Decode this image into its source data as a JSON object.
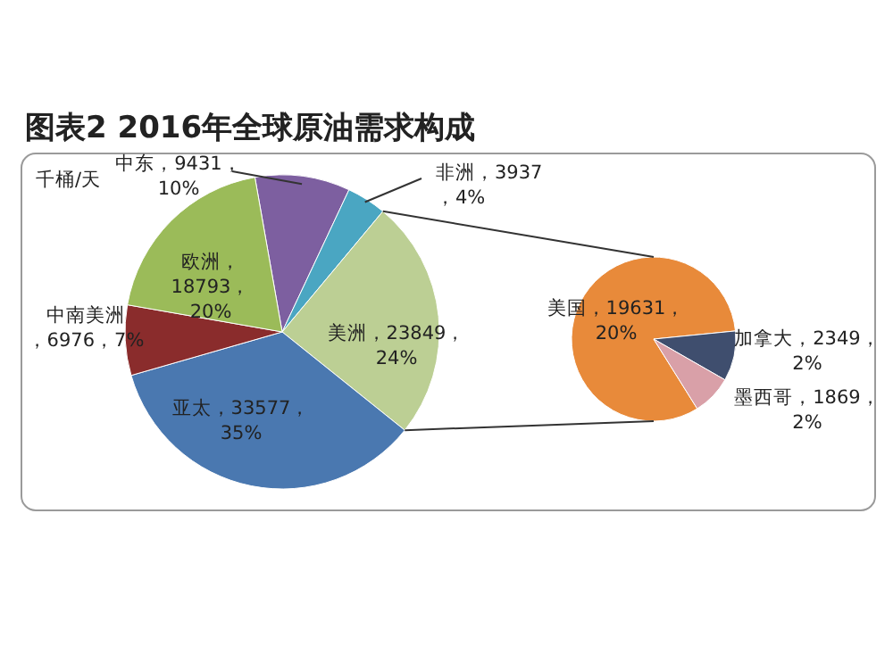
{
  "chart_data": [
    {
      "type": "pie",
      "title": "图表2 2016年全球原油需求构成",
      "annotations": [
        "千桶/天"
      ],
      "categories": [
        "中东",
        "非洲",
        "美洲",
        "亚太",
        "中南美洲",
        "欧洲"
      ],
      "values": [
        9431,
        3937,
        23849,
        33577,
        6976,
        18793
      ],
      "value_labels": [
        "，9431，\n10%",
        "，3937\n，4%",
        "，23849，\n24%",
        "，33577，\n35%",
        "\n，6976，7%",
        "，\n18793，\n20%"
      ],
      "colors": [
        "#7d5fa0",
        "#4aa6c2",
        "#bccf94",
        "#4a78b0",
        "#8a2c2c",
        "#9bbb59"
      ]
    },
    {
      "type": "pie",
      "categories": [
        "美国",
        "加拿大",
        "墨西哥"
      ],
      "values": [
        19631,
        2349,
        1869
      ],
      "value_labels": [
        "，19631，\n20%",
        "，2349，\n2%",
        "，1869，\n2%"
      ],
      "colors": [
        "#e88a3a",
        "#3f4e6e",
        "#d9a0a8"
      ]
    }
  ]
}
